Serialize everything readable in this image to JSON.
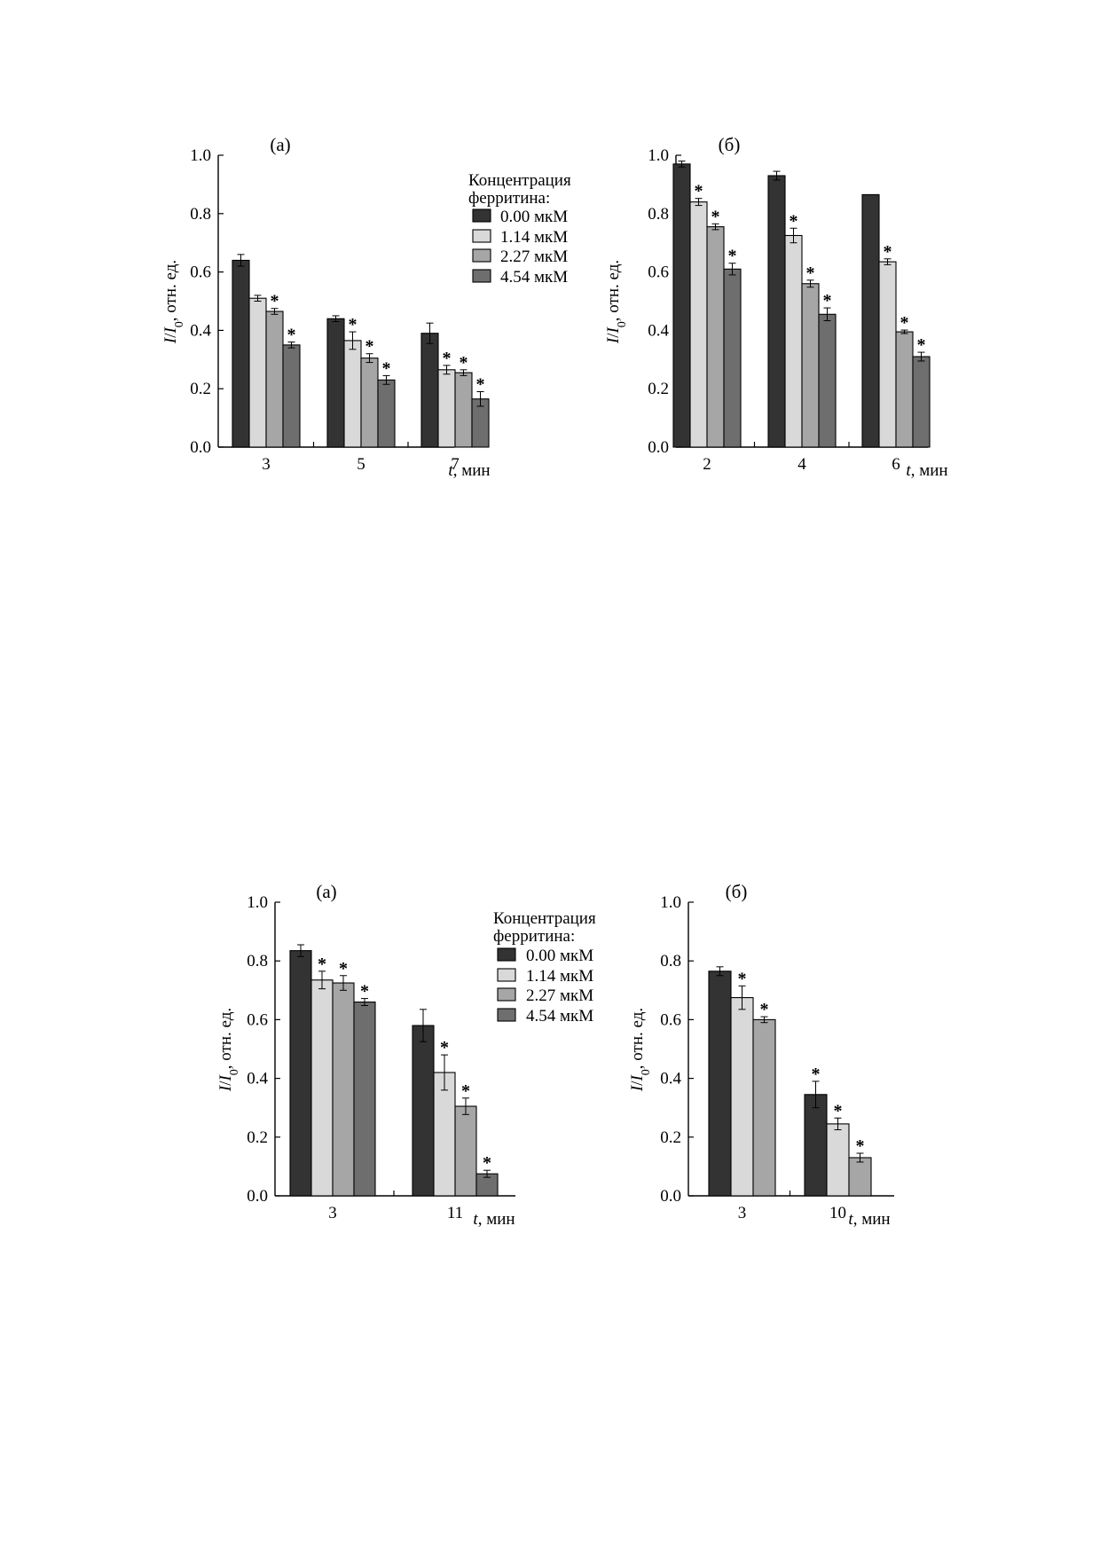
{
  "chart_data": [
    {
      "panel": "(а)",
      "type": "bar",
      "categories": [
        "3",
        "5",
        "7"
      ],
      "xlabel_var": "t",
      "xlabel_unit": ", мин",
      "ylabel_var": "I",
      "ylabel_sep": "/",
      "ylabel_var2": "I",
      "ylabel_sub": "0",
      "ylabel_unit": ", отн. ед.",
      "ylim": [
        0,
        1.0
      ],
      "yticks": [
        "0.0",
        "0.2",
        "0.4",
        "0.6",
        "0.8",
        "1.0"
      ],
      "legend": {
        "title_line1": "Концентрация",
        "title_line2": "ферритина:",
        "placement": "top-right"
      },
      "series": [
        {
          "name": "0.00 мкМ",
          "color": "#333333",
          "values": [
            0.64,
            0.44,
            0.39
          ],
          "errors": [
            0.02,
            0.01,
            0.035
          ],
          "sig": [
            false,
            false,
            false
          ]
        },
        {
          "name": "1.14 мкМ",
          "color": "#d9d9d9",
          "values": [
            0.51,
            0.365,
            0.265
          ],
          "errors": [
            0.01,
            0.03,
            0.015
          ],
          "sig": [
            false,
            true,
            true
          ]
        },
        {
          "name": "2.27 мкМ",
          "color": "#a6a6a6",
          "values": [
            0.465,
            0.305,
            0.255
          ],
          "errors": [
            0.01,
            0.015,
            0.01
          ],
          "sig": [
            true,
            true,
            true
          ]
        },
        {
          "name": "4.54 мкМ",
          "color": "#6e6e6e",
          "values": [
            0.35,
            0.23,
            0.165
          ],
          "errors": [
            0.01,
            0.015,
            0.025
          ],
          "sig": [
            true,
            true,
            true
          ]
        }
      ],
      "sig_marker": "*"
    },
    {
      "panel": "(б)",
      "type": "bar",
      "categories": [
        "2",
        "4",
        "6"
      ],
      "xlabel_var": "t",
      "xlabel_unit": ", мин",
      "ylabel_var": "I",
      "ylabel_sep": "/",
      "ylabel_var2": "I",
      "ylabel_sub": "0",
      "ylabel_unit": ", отн. ед.",
      "ylim": [
        0,
        1.0
      ],
      "yticks": [
        "0.0",
        "0.2",
        "0.4",
        "0.6",
        "0.8",
        "1.0"
      ],
      "series": [
        {
          "name": "0.00 мкМ",
          "color": "#333333",
          "values": [
            0.97,
            0.93,
            0.865
          ],
          "errors": [
            0.01,
            0.015,
            0
          ],
          "sig": [
            false,
            false,
            false
          ]
        },
        {
          "name": "1.14 мкМ",
          "color": "#d9d9d9",
          "values": [
            0.84,
            0.725,
            0.635
          ],
          "errors": [
            0.012,
            0.025,
            0.01
          ],
          "sig": [
            true,
            true,
            true
          ]
        },
        {
          "name": "2.27 мкМ",
          "color": "#a6a6a6",
          "values": [
            0.755,
            0.56,
            0.395
          ],
          "errors": [
            0.01,
            0.012,
            0.006
          ],
          "sig": [
            true,
            true,
            true
          ]
        },
        {
          "name": "4.54 мкМ",
          "color": "#6e6e6e",
          "values": [
            0.61,
            0.455,
            0.31
          ],
          "errors": [
            0.02,
            0.022,
            0.015
          ],
          "sig": [
            true,
            true,
            true
          ]
        }
      ],
      "sig_marker": "*"
    },
    {
      "panel": "(а)",
      "type": "bar",
      "categories": [
        "3",
        "11"
      ],
      "xlabel_var": "t",
      "xlabel_unit": ", мин",
      "ylabel_var": "I",
      "ylabel_sep": "/",
      "ylabel_var2": "I",
      "ylabel_sub": "0",
      "ylabel_unit": ", отн. ед.",
      "ylim": [
        0,
        1.0
      ],
      "yticks": [
        "0.0",
        "0.2",
        "0.4",
        "0.6",
        "0.8",
        "1.0"
      ],
      "legend": {
        "title_line1": "Концентрация",
        "title_line2": "ферритина:",
        "placement": "top-right"
      },
      "series": [
        {
          "name": "0.00 мкМ",
          "color": "#333333",
          "values": [
            0.835,
            0.58
          ],
          "errors": [
            0.02,
            0.055
          ],
          "sig": [
            false,
            false
          ]
        },
        {
          "name": "1.14 мкМ",
          "color": "#d9d9d9",
          "values": [
            0.735,
            0.42
          ],
          "errors": [
            0.03,
            0.06
          ],
          "sig": [
            true,
            true
          ]
        },
        {
          "name": "2.27 мкМ",
          "color": "#a6a6a6",
          "values": [
            0.725,
            0.305
          ],
          "errors": [
            0.025,
            0.028
          ],
          "sig": [
            true,
            true
          ]
        },
        {
          "name": "4.54 мкМ",
          "color": "#6e6e6e",
          "values": [
            0.66,
            0.075
          ],
          "errors": [
            0.012,
            0.012
          ],
          "sig": [
            true,
            true
          ]
        }
      ],
      "sig_marker": "*"
    },
    {
      "panel": "(б)",
      "type": "bar",
      "categories": [
        "3",
        "10"
      ],
      "xlabel_var": "t",
      "xlabel_unit": ", мин",
      "ylabel_var": "I",
      "ylabel_sep": "/",
      "ylabel_var2": "I",
      "ylabel_sub": "0",
      "ylabel_unit": ", отн. ед.",
      "ylim": [
        0,
        1.0
      ],
      "yticks": [
        "0.0",
        "0.2",
        "0.4",
        "0.6",
        "0.8",
        "1.0"
      ],
      "series": [
        {
          "name": "0.00 мкМ",
          "color": "#333333",
          "values": [
            0.765,
            0.345
          ],
          "errors": [
            0.015,
            0.045
          ],
          "sig": [
            false,
            true
          ]
        },
        {
          "name": "1.14 мкМ",
          "color": "#d9d9d9",
          "values": [
            0.675,
            0.245
          ],
          "errors": [
            0.04,
            0.02
          ],
          "sig": [
            true,
            true
          ]
        },
        {
          "name": "2.27 мкМ",
          "color": "#a6a6a6",
          "values": [
            0.6,
            0.13
          ],
          "errors": [
            0.01,
            0.015
          ],
          "sig": [
            true,
            true
          ]
        }
      ],
      "sig_marker": "*"
    }
  ]
}
